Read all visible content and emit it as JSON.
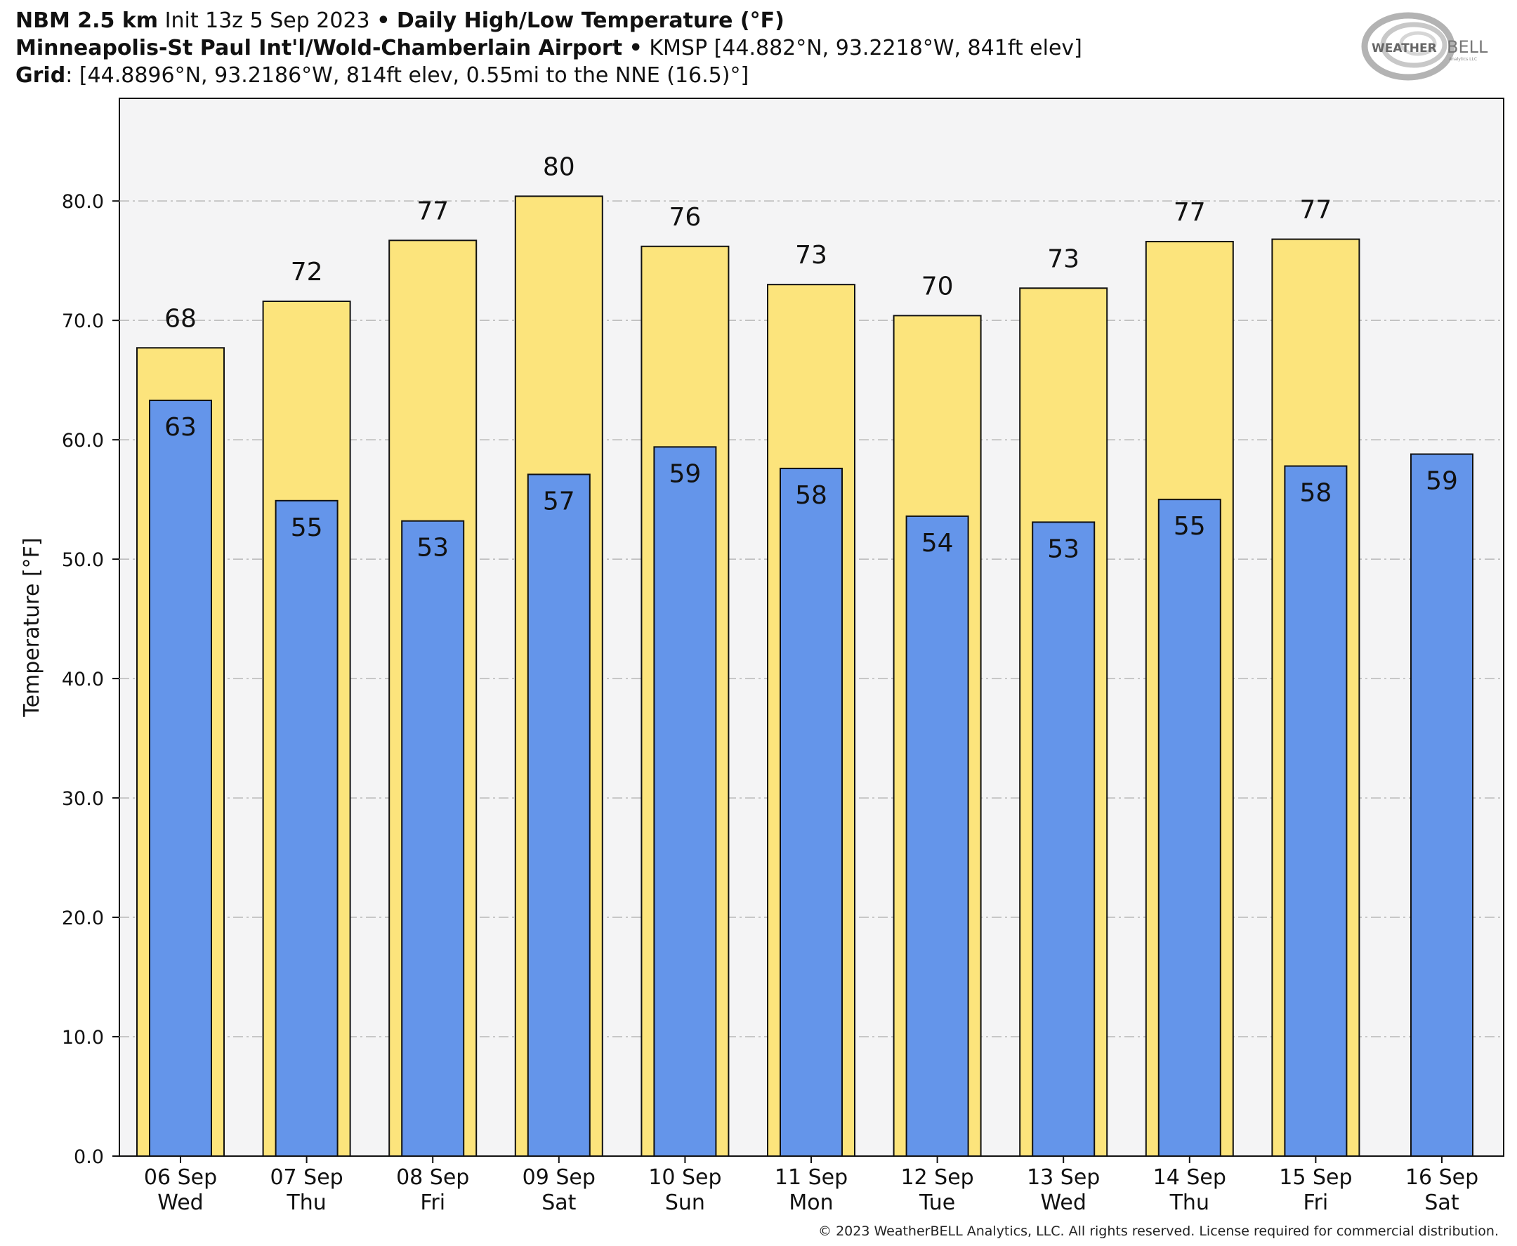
{
  "header": {
    "line1": {
      "model": "NBM 2.5 km",
      "init": "Init 13z 5 Sep 2023",
      "sep": "•",
      "product": "Daily High/Low Temperature (°F)"
    },
    "line2": {
      "station": "Minneapolis-St Paul Int'l/Wold-Chamberlain Airport",
      "sep": "•",
      "details": "KMSP [44.882°N, 93.2218°W, 841ft elev]"
    },
    "line3": {
      "label": "Grid",
      "details": ": [44.8896°N, 93.2186°W, 814ft elev, 0.55mi to the NNE (16.5)°]"
    }
  },
  "logo": {
    "text_left": "WEATHER",
    "text_right": "BELL",
    "sub": "Analytics LLC"
  },
  "copyright": "© 2023 WeatherBELL Analytics, LLC. All rights reserved. License required for commercial distribution.",
  "colors": {
    "high": "#fce47c",
    "low": "#6495ea",
    "plot_bg": "#f4f4f5",
    "grid": "#b8b8b8"
  },
  "chart_data": {
    "type": "bar",
    "ylabel": "Temperature [°F]",
    "ylim": [
      0,
      88.6
    ],
    "yticks": [
      "0.0",
      "10.0",
      "20.0",
      "30.0",
      "40.0",
      "50.0",
      "60.0",
      "70.0",
      "80.0"
    ],
    "grid": true,
    "categories": [
      [
        "06 Sep",
        "Wed"
      ],
      [
        "07 Sep",
        "Thu"
      ],
      [
        "08 Sep",
        "Fri"
      ],
      [
        "09 Sep",
        "Sat"
      ],
      [
        "10 Sep",
        "Sun"
      ],
      [
        "11 Sep",
        "Mon"
      ],
      [
        "12 Sep",
        "Tue"
      ],
      [
        "13 Sep",
        "Wed"
      ],
      [
        "14 Sep",
        "Thu"
      ],
      [
        "15 Sep",
        "Fri"
      ],
      [
        "16 Sep",
        "Sat"
      ]
    ],
    "series": [
      {
        "key": "high",
        "values": [
          67.7,
          71.6,
          76.7,
          80.4,
          76.2,
          73.0,
          70.4,
          72.7,
          76.6,
          76.8,
          null
        ],
        "labels": [
          "68",
          "72",
          "77",
          "80",
          "76",
          "73",
          "70",
          "73",
          "77",
          "77",
          ""
        ]
      },
      {
        "key": "low",
        "values": [
          63.3,
          54.9,
          53.2,
          57.1,
          59.4,
          57.6,
          53.6,
          53.1,
          55.0,
          57.8,
          58.8
        ],
        "labels": [
          "63",
          "55",
          "53",
          "57",
          "59",
          "58",
          "54",
          "53",
          "55",
          "58",
          "59"
        ]
      }
    ]
  }
}
